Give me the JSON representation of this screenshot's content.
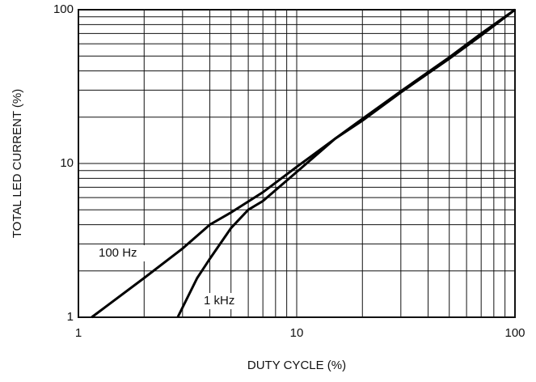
{
  "chart_data": {
    "type": "line",
    "xlabel": "DUTY CYCLE (%)",
    "ylabel": "TOTAL LED CURRENT (%)",
    "xlog": true,
    "ylog": true,
    "grid": true,
    "xlim": [
      1,
      100
    ],
    "ylim": [
      1,
      100
    ],
    "xticks": [
      1,
      10,
      100
    ],
    "yticks": [
      1,
      10,
      100
    ],
    "xminorticks": [
      2,
      3,
      4,
      5,
      6,
      7,
      8,
      9,
      20,
      30,
      40,
      50,
      60,
      70,
      80,
      90
    ],
    "yminorticks": [
      2,
      3,
      4,
      5,
      6,
      7,
      8,
      9,
      20,
      30,
      40,
      50,
      60,
      70,
      80,
      90
    ],
    "series": [
      {
        "name": "100 Hz",
        "color": "#000000",
        "x": [
          1.15,
          2,
          3,
          4,
          5,
          7,
          10,
          15,
          20,
          30,
          50,
          70,
          100
        ],
        "values": [
          1,
          1.8,
          2.8,
          4.0,
          4.8,
          6.5,
          9.5,
          14.5,
          19,
          29,
          48,
          68,
          100
        ]
      },
      {
        "name": "1 kHz",
        "color": "#000000",
        "x": [
          2.85,
          3.5,
          4,
          5,
          6,
          7,
          10,
          15,
          20,
          30,
          50,
          70,
          100
        ],
        "values": [
          1,
          1.8,
          2.4,
          3.8,
          5.0,
          5.7,
          8.8,
          14.5,
          19.5,
          29.5,
          49,
          70,
          100
        ]
      }
    ]
  }
}
